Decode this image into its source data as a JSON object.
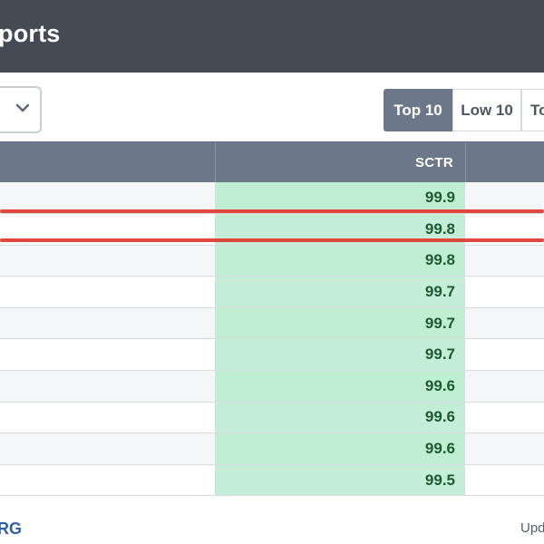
{
  "header": {
    "title": "ports"
  },
  "toolbar": {
    "dropdown_icon": "chevron-down-icon",
    "segments": [
      {
        "label": "Top 10",
        "active": true
      },
      {
        "label": "Low 10",
        "active": false
      },
      {
        "label": "To",
        "active": false
      }
    ]
  },
  "table": {
    "columns": {
      "sctr": "SCTR"
    },
    "rows": [
      {
        "sctr": "99.9"
      },
      {
        "sctr": "99.8"
      },
      {
        "sctr": "99.8"
      },
      {
        "sctr": "99.7"
      },
      {
        "sctr": "99.7"
      },
      {
        "sctr": "99.7"
      },
      {
        "sctr": "99.6"
      },
      {
        "sctr": "99.6"
      },
      {
        "sctr": "99.6"
      },
      {
        "sctr": "99.5"
      }
    ]
  },
  "footer": {
    "brand": "RG",
    "update_text": "Upd"
  },
  "colors": {
    "header_bg": "#454b55",
    "table_header_bg": "#6c7789",
    "sctr_cell_bg": "#c4eed7",
    "sctr_text": "#1e5a31",
    "highlight": "#e0483e",
    "brand_blue": "#2f5fa8"
  }
}
